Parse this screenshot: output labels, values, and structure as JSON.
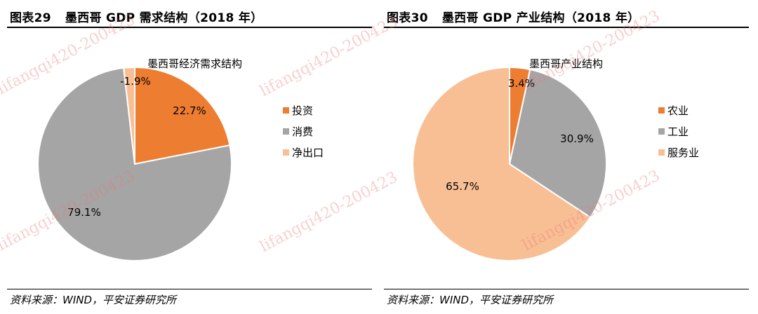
{
  "colors": {
    "orange": "#ED7D31",
    "gray": "#A5A5A5",
    "peach": "#F8BF95",
    "watermark": "#E87878"
  },
  "watermark_text": "lifangqi420-200423",
  "panels": [
    {
      "fig_num": "图表29",
      "fig_title": "墨西哥 GDP 需求结构（2018 年）",
      "source": "资料来源：WIND，平安证券研究所"
    },
    {
      "fig_num": "图表30",
      "fig_title": "墨西哥 GDP 产业结构（2018 年）",
      "source": "资料来源：WIND，平安证券研究所"
    }
  ],
  "chart_data": [
    {
      "type": "pie",
      "title": "墨西哥经济需求结构",
      "categories": [
        "投资",
        "消费",
        "净出口"
      ],
      "values": [
        22.7,
        79.1,
        -1.9
      ],
      "labels": [
        "22.7%",
        "79.1%",
        "-1.9%"
      ],
      "colors": [
        "#ED7D31",
        "#A5A5A5",
        "#F8BF95"
      ],
      "legend": "right"
    },
    {
      "type": "pie",
      "title": "墨西哥产业结构",
      "categories": [
        "农业",
        "工业",
        "服务业"
      ],
      "values": [
        3.4,
        30.9,
        65.7
      ],
      "labels": [
        "3.4%",
        "30.9%",
        "65.7%"
      ],
      "colors": [
        "#ED7D31",
        "#A5A5A5",
        "#F8BF95"
      ],
      "legend": "right"
    }
  ]
}
